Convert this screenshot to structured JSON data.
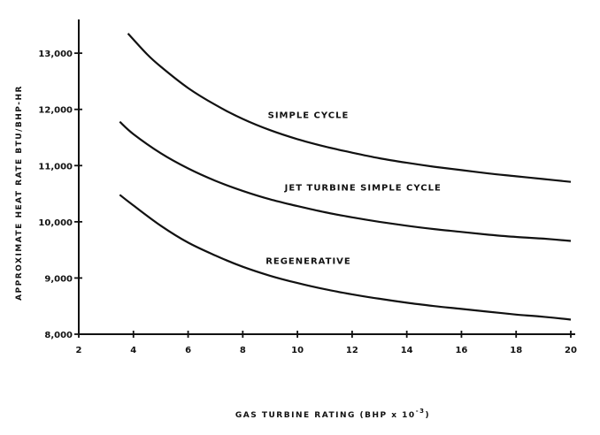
{
  "chart_data": {
    "type": "line",
    "xlabel": "GAS TURBINE RATING (BHP x 10",
    "xlabel_exp": "-3",
    "xlabel_close": ")",
    "ylabel": "APPROXIMATE HEAT RATE   BTU/BHP-HR",
    "xlim": [
      2,
      20
    ],
    "ylim": [
      8000,
      13600
    ],
    "xticks": [
      2,
      4,
      6,
      8,
      10,
      12,
      14,
      16,
      18,
      20
    ],
    "xtick_labels": [
      "2",
      "4",
      "6",
      "8",
      "10",
      "12",
      "14",
      "16",
      "18",
      "20"
    ],
    "yticks": [
      8000,
      9000,
      10000,
      11000,
      12000,
      13000
    ],
    "ytick_labels": [
      "8,000",
      "9,000",
      "10,000",
      "11,000",
      "12,000",
      "13,000"
    ],
    "grid": false,
    "series": [
      {
        "name": "SIMPLE CYCLE",
        "x": [
          3.8,
          4.5,
          5,
          6,
          7,
          8,
          9,
          10,
          11,
          12,
          13,
          14,
          15,
          16,
          17,
          18,
          19,
          20
        ],
        "y": [
          13350,
          12980,
          12760,
          12380,
          12080,
          11830,
          11630,
          11470,
          11340,
          11230,
          11130,
          11050,
          10980,
          10920,
          10860,
          10810,
          10760,
          10710
        ]
      },
      {
        "name": "JET TURBINE SIMPLE CYCLE",
        "x": [
          3.5,
          4,
          5,
          6,
          7,
          8,
          9,
          10,
          11,
          12,
          13,
          14,
          15,
          16,
          17,
          18,
          19,
          20
        ],
        "y": [
          11780,
          11560,
          11220,
          10950,
          10730,
          10550,
          10400,
          10280,
          10170,
          10080,
          10000,
          9930,
          9870,
          9820,
          9770,
          9730,
          9700,
          9660
        ]
      },
      {
        "name": "REGENERATIVE",
        "x": [
          3.5,
          4,
          5,
          6,
          7,
          8,
          9,
          10,
          11,
          12,
          13,
          14,
          15,
          16,
          17,
          18,
          19,
          20
        ],
        "y": [
          10480,
          10290,
          9930,
          9630,
          9400,
          9200,
          9040,
          8910,
          8800,
          8710,
          8630,
          8560,
          8500,
          8450,
          8400,
          8350,
          8310,
          8260
        ]
      }
    ],
    "annotations": [
      {
        "text": "SIMPLE CYCLE",
        "x": 10.4,
        "y": 11850
      },
      {
        "text": "JET TURBINE SIMPLE CYCLE",
        "x": 12.4,
        "y": 10560
      },
      {
        "text": "REGENERATIVE",
        "x": 10.4,
        "y": 9250
      }
    ]
  }
}
